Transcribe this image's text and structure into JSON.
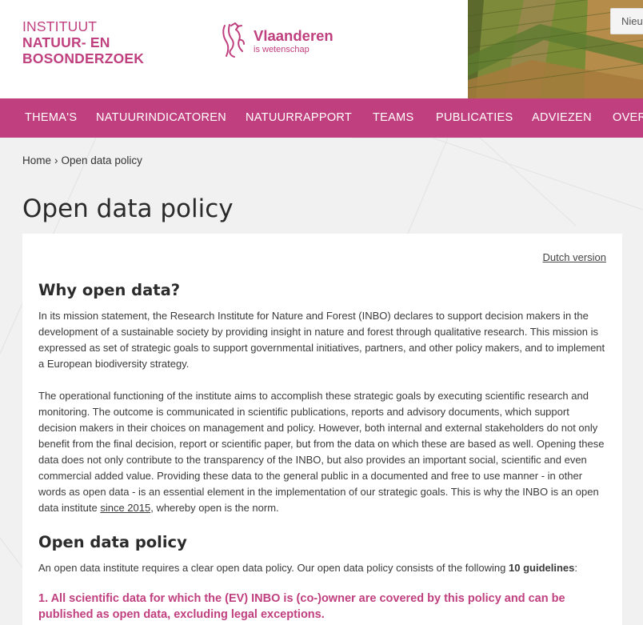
{
  "header": {
    "inbo_logo_lines": [
      "INSTITUUT",
      "NATUUR- EN",
      "BOSONDERZOEK"
    ],
    "vlaanderen_name": "Vlaanderen",
    "vlaanderen_sub": "is wetenschap",
    "news_button": "Nieuw"
  },
  "nav": {
    "items": [
      "THEMA'S",
      "NATUURINDICATOREN",
      "NATUURRAPPORT",
      "TEAMS",
      "PUBLICATIES",
      "ADVIEZEN",
      "OVER"
    ]
  },
  "breadcrumb": {
    "home": "Home",
    "separator": "›",
    "current": "Open data policy"
  },
  "page_title": "Open data policy",
  "content": {
    "dutch_link": "Dutch version",
    "section1_heading": "Why open data?",
    "para1": "In its mission statement, the Research Institute for Nature and Forest (INBO) declares to support decision makers in the development of a sustainable society by providing insight in nature and forest through qualitative research. This mission is expressed as set of strategic goals to support governmental initiatives, partners, and other policy makers, and to implement a European biodiversity strategy.",
    "para2_before_link": "The operational functioning of the institute aims to accomplish these strategic goals by executing scientific research and monitoring. The outcome is communicated in scientific publications, reports and advisory documents, which support decision makers in their choices on management and policy. However, both internal and external stakeholders do not only benefit from the final decision, report or scientific paper, but from the data on which these are based as well. Opening these data does not only contribute to the transparency of the INBO, but also provides an important social, scientific and even commercial added value. Providing these data to the general public in a documented and free to use manner - in other words as open data - is an essential element in the implementation of our strategic goals. This is why the INBO is an open data institute ",
    "para2_link": "since 2015",
    "para2_after_link": ", whereby open is the norm.",
    "section2_heading": "Open data policy",
    "para3_before_bold": "An open data institute requires a clear open data policy. Our open data policy consists of the following ",
    "para3_bold": "10 guidelines",
    "para3_after_bold": ":",
    "guideline1": "1. All scientific data for which the (EV) INBO is (co-)owner are covered by this policy and can be published as open data, excluding legal exceptions."
  },
  "colors": {
    "brand": "#c0407f",
    "background": "#f1f1f1",
    "card": "#ffffff"
  }
}
